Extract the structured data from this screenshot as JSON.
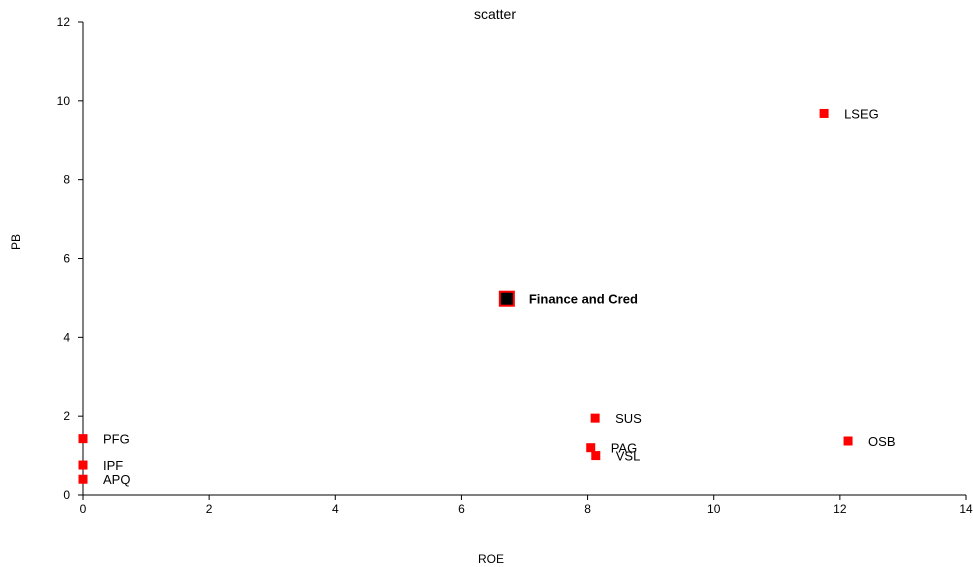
{
  "chart_data": {
    "type": "scatter",
    "title": "scatter",
    "xlabel": "ROE",
    "ylabel": "PB",
    "xlim": [
      0,
      14
    ],
    "ylim": [
      0,
      12
    ],
    "xticks": [
      0,
      2,
      4,
      6,
      8,
      10,
      12,
      14
    ],
    "yticks": [
      0,
      2,
      4,
      6,
      8,
      10,
      12
    ],
    "grid": false,
    "points": [
      {
        "label": "LSEG",
        "x": 11.75,
        "y": 9.68,
        "highlight": false
      },
      {
        "label": "Finance and Cred",
        "x": 6.72,
        "y": 4.98,
        "highlight": true
      },
      {
        "label": "SUS",
        "x": 8.12,
        "y": 1.95,
        "highlight": false
      },
      {
        "label": "PAG",
        "x": 8.05,
        "y": 1.2,
        "highlight": false
      },
      {
        "label": "VSL",
        "x": 8.13,
        "y": 1.0,
        "highlight": false
      },
      {
        "label": "OSB",
        "x": 12.13,
        "y": 1.37,
        "highlight": false
      },
      {
        "label": "PFG",
        "x": 0.0,
        "y": 1.43,
        "highlight": false
      },
      {
        "label": "IPF",
        "x": 0.0,
        "y": 0.76,
        "highlight": false
      },
      {
        "label": "APQ",
        "x": 0.0,
        "y": 0.4,
        "highlight": false
      }
    ],
    "colors": {
      "marker": "#ff0000",
      "highlight_fill": "#000000",
      "highlight_border": "#ff0000",
      "axis": "#000000"
    }
  }
}
